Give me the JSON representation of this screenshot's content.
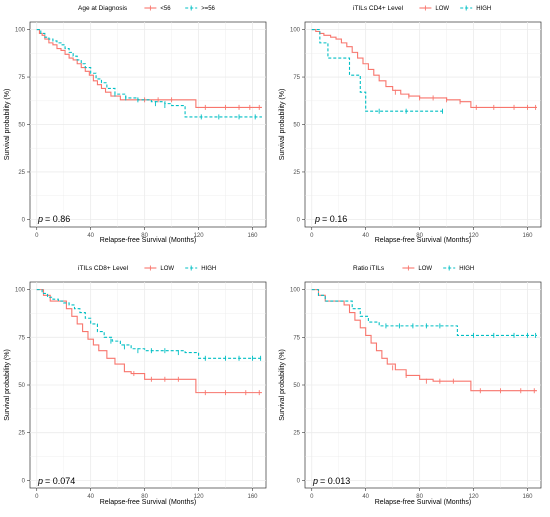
{
  "colors": {
    "red": "#F8766D",
    "teal": "#00BFC4",
    "grid": "#ebebeb",
    "axis": "#333333"
  },
  "chart_data": [
    {
      "type": "line",
      "legend_title": "Age at Diagnosis",
      "xlabel": "Relapse-free Survival (Months)",
      "ylabel": "Survival probability (%)",
      "xticks": [
        0,
        40,
        80,
        120,
        160
      ],
      "yticks": [
        0,
        25,
        50,
        75,
        100
      ],
      "xlim": [
        -5,
        170
      ],
      "ylim": [
        -4,
        104
      ],
      "pvalue": "= 0.86",
      "series": [
        {
          "name": "<56",
          "color": "#F8766D",
          "dash": false,
          "x": [
            0,
            2,
            4,
            6,
            9,
            12,
            15,
            18,
            21,
            24,
            27,
            30,
            33,
            36,
            39,
            42,
            45,
            48,
            51,
            55,
            62,
            70,
            80,
            90,
            100,
            112,
            118,
            130,
            140,
            150,
            160,
            167
          ],
          "y": [
            100,
            98,
            97,
            95,
            93,
            92,
            90,
            89,
            87,
            85,
            84,
            82,
            80,
            78,
            76,
            73,
            71,
            69,
            67,
            65,
            63,
            63,
            63,
            63,
            63,
            63,
            59,
            59,
            59,
            59,
            59,
            59
          ],
          "censor": [
            [
              80,
              63
            ],
            [
              90,
              63
            ],
            [
              100,
              63
            ],
            [
              125,
              59
            ],
            [
              140,
              59
            ],
            [
              150,
              59
            ],
            [
              158,
              59
            ],
            [
              165,
              59
            ]
          ]
        },
        {
          "name": ">=56",
          "color": "#00BFC4",
          "dash": true,
          "x": [
            0,
            3,
            6,
            9,
            12,
            15,
            18,
            21,
            24,
            27,
            30,
            33,
            36,
            40,
            44,
            48,
            52,
            58,
            66,
            75,
            85,
            95,
            100,
            110,
            120,
            135,
            150,
            167
          ],
          "y": [
            100,
            98,
            96,
            95,
            94,
            93,
            92,
            90,
            88,
            86,
            84,
            82,
            80,
            77,
            74,
            72,
            69,
            66,
            64,
            63,
            62,
            61,
            60,
            54,
            54,
            54,
            54,
            54
          ],
          "censor": [
            [
              58,
              66
            ],
            [
              66,
              64
            ],
            [
              75,
              63
            ],
            [
              88,
              61
            ],
            [
              95,
              60
            ],
            [
              122,
              54
            ],
            [
              135,
              54
            ],
            [
              150,
              54
            ],
            [
              162,
              54
            ]
          ]
        }
      ]
    },
    {
      "type": "line",
      "legend_title": "iTILs CD4+ Level",
      "xlabel": "Relapse-free Survival (Months)",
      "ylabel": "Survival probability (%)",
      "xticks": [
        0,
        40,
        80,
        120,
        160
      ],
      "yticks": [
        0,
        25,
        50,
        75,
        100
      ],
      "xlim": [
        -5,
        170
      ],
      "ylim": [
        -4,
        104
      ],
      "pvalue": "= 0.16",
      "series": [
        {
          "name": "LOW",
          "color": "#F8766D",
          "dash": false,
          "x": [
            0,
            3,
            6,
            9,
            14,
            18,
            22,
            26,
            30,
            34,
            38,
            42,
            46,
            50,
            55,
            60,
            66,
            72,
            80,
            90,
            100,
            110,
            118,
            130,
            145,
            160,
            167
          ],
          "y": [
            100,
            99,
            98,
            97,
            96,
            95,
            93,
            91,
            88,
            85,
            82,
            79,
            76,
            73,
            70,
            68,
            66,
            65,
            64,
            64,
            63,
            62,
            59,
            59,
            59,
            59,
            59
          ],
          "censor": [
            [
              62,
              67
            ],
            [
              72,
              65
            ],
            [
              80,
              64
            ],
            [
              90,
              64
            ],
            [
              100,
              63
            ],
            [
              110,
              62
            ],
            [
              122,
              59
            ],
            [
              135,
              59
            ],
            [
              150,
              59
            ],
            [
              160,
              59
            ],
            [
              166,
              59
            ]
          ]
        },
        {
          "name": "HIGH",
          "color": "#00BFC4",
          "dash": true,
          "x": [
            0,
            3,
            6,
            12,
            20,
            28,
            33,
            36,
            40,
            50,
            60,
            70,
            85,
            97
          ],
          "y": [
            100,
            100,
            93,
            85,
            85,
            76,
            76,
            67,
            57,
            57,
            57,
            57,
            57,
            57
          ],
          "censor": [
            [
              50,
              57
            ],
            [
              70,
              57
            ],
            [
              97,
              57
            ]
          ]
        }
      ]
    },
    {
      "type": "line",
      "legend_title": "iTILs CD8+ Level",
      "xlabel": "Relapse-free Survival (Months)",
      "ylabel": "Survival probability (%)",
      "xticks": [
        0,
        40,
        80,
        120,
        160
      ],
      "yticks": [
        0,
        25,
        50,
        75,
        100
      ],
      "xlim": [
        -5,
        170
      ],
      "ylim": [
        -4,
        104
      ],
      "pvalue": "= 0.074",
      "series": [
        {
          "name": "LOW",
          "color": "#F8766D",
          "dash": false,
          "x": [
            0,
            5,
            10,
            16,
            22,
            26,
            30,
            34,
            38,
            42,
            46,
            52,
            58,
            65,
            70,
            80,
            90,
            100,
            110,
            118,
            130,
            145,
            167
          ],
          "y": [
            100,
            97,
            94,
            94,
            90,
            86,
            82,
            78,
            74,
            71,
            68,
            64,
            61,
            57,
            56,
            53,
            53,
            53,
            53,
            46,
            46,
            46,
            46
          ],
          "censor": [
            [
              72,
              56
            ],
            [
              85,
              53
            ],
            [
              95,
              53
            ],
            [
              105,
              53
            ],
            [
              125,
              46
            ],
            [
              140,
              46
            ],
            [
              155,
              46
            ],
            [
              165,
              46
            ]
          ]
        },
        {
          "name": "HIGH",
          "color": "#00BFC4",
          "dash": true,
          "x": [
            0,
            4,
            8,
            12,
            16,
            20,
            24,
            28,
            32,
            36,
            40,
            45,
            50,
            56,
            62,
            70,
            80,
            90,
            100,
            110,
            120,
            135,
            150,
            167
          ],
          "y": [
            100,
            98,
            96,
            95,
            94,
            93,
            92,
            90,
            88,
            85,
            82,
            78,
            75,
            73,
            71,
            69,
            68,
            68,
            68,
            67,
            64,
            64,
            64,
            64
          ],
          "censor": [
            [
              55,
              73
            ],
            [
              65,
              70
            ],
            [
              75,
              68
            ],
            [
              85,
              68
            ],
            [
              95,
              68
            ],
            [
              105,
              67
            ],
            [
              125,
              64
            ],
            [
              140,
              64
            ],
            [
              150,
              64
            ],
            [
              160,
              64
            ],
            [
              166,
              64
            ]
          ]
        }
      ]
    },
    {
      "type": "line",
      "legend_title": "Ratio iTILs",
      "xlabel": "Relapse-free Survival (Months)",
      "ylabel": "Survival probability (%)",
      "xticks": [
        0,
        40,
        80,
        120,
        160
      ],
      "yticks": [
        0,
        25,
        50,
        75,
        100
      ],
      "xlim": [
        -5,
        170
      ],
      "ylim": [
        -4,
        104
      ],
      "pvalue": "= 0.013",
      "series": [
        {
          "name": "LOW",
          "color": "#F8766D",
          "dash": false,
          "x": [
            0,
            5,
            10,
            16,
            24,
            28,
            32,
            36,
            40,
            44,
            48,
            52,
            56,
            62,
            70,
            80,
            90,
            100,
            110,
            118,
            130,
            145,
            167
          ],
          "y": [
            100,
            97,
            94,
            94,
            92,
            88,
            84,
            80,
            76,
            72,
            68,
            64,
            61,
            58,
            55,
            53,
            52,
            52,
            52,
            47,
            47,
            47,
            47
          ],
          "censor": [
            [
              60,
              59
            ],
            [
              70,
              55
            ],
            [
              85,
              52
            ],
            [
              95,
              52
            ],
            [
              105,
              52
            ],
            [
              125,
              47
            ],
            [
              140,
              47
            ],
            [
              155,
              47
            ],
            [
              165,
              47
            ]
          ]
        },
        {
          "name": "HIGH",
          "color": "#00BFC4",
          "dash": true,
          "x": [
            0,
            5,
            10,
            16,
            24,
            30,
            36,
            42,
            50,
            60,
            70,
            80,
            90,
            100,
            108,
            120,
            135,
            150,
            167
          ],
          "y": [
            100,
            97,
            94,
            94,
            94,
            90,
            86,
            83,
            81,
            81,
            81,
            81,
            81,
            81,
            76,
            76,
            76,
            76,
            76
          ],
          "censor": [
            [
              55,
              81
            ],
            [
              65,
              81
            ],
            [
              75,
              81
            ],
            [
              85,
              81
            ],
            [
              95,
              81
            ],
            [
              120,
              76
            ],
            [
              135,
              76
            ],
            [
              150,
              76
            ],
            [
              160,
              76
            ],
            [
              166,
              76
            ]
          ]
        }
      ]
    }
  ]
}
